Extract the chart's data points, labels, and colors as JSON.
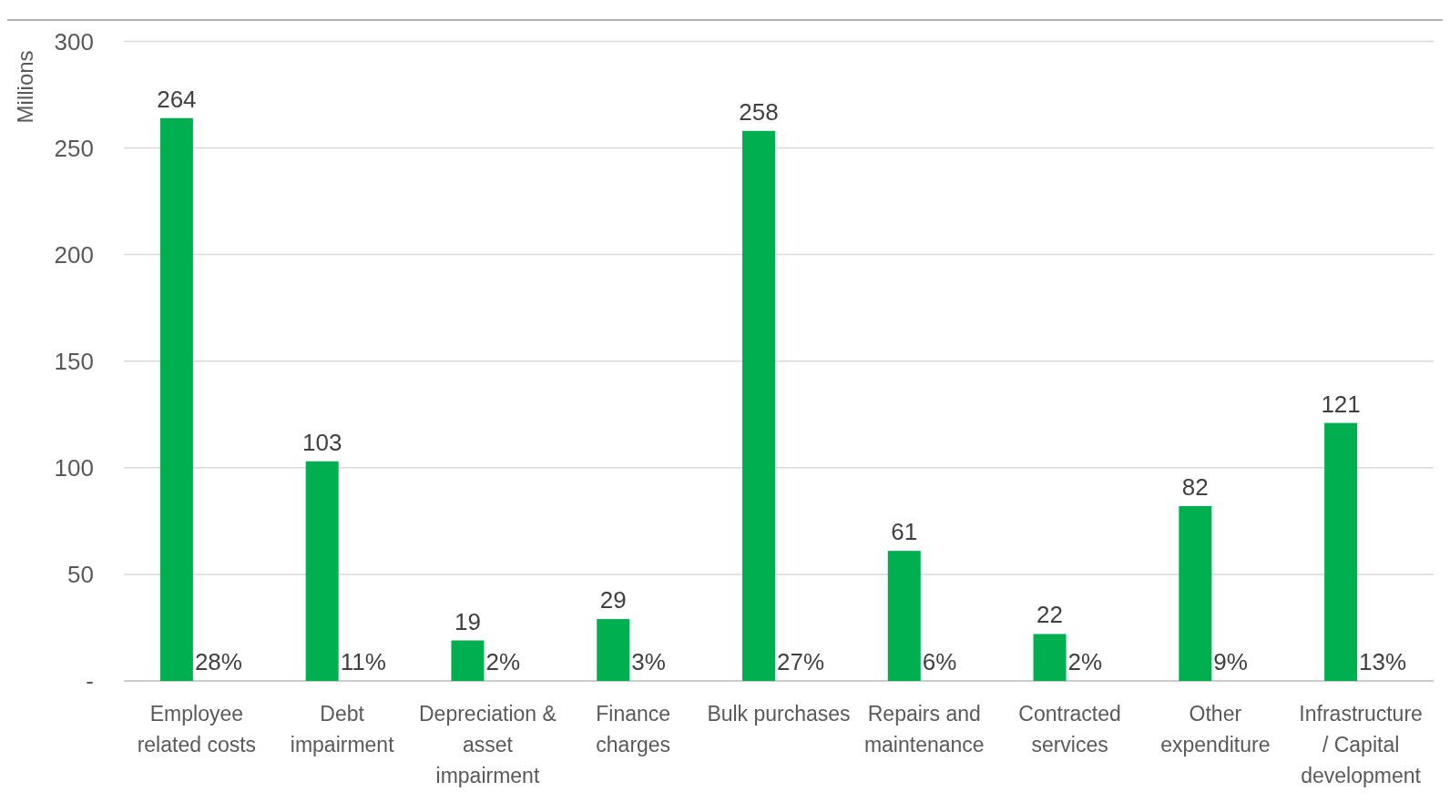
{
  "chart_data": {
    "type": "bar",
    "ylabel": "Millions",
    "categories": [
      "Employee related costs",
      "Debt impairment",
      "Depreciation & asset impairment",
      "Finance charges",
      "Bulk purchases",
      "Repairs and maintenance",
      "Contracted services",
      "Other expenditure",
      "Infrastructure / Capital development"
    ],
    "values": [
      264,
      103,
      19,
      29,
      258,
      61,
      22,
      82,
      121
    ],
    "color": "#00b050",
    "data_labels": true,
    "ylim": [
      0,
      310
    ],
    "yticks": [
      {
        "value": 0,
        "label": "-"
      },
      50,
      100,
      150,
      200,
      250,
      300
    ],
    "grid": "y",
    "annotations": [
      {
        "text": "28%",
        "x": "Employee related costs",
        "y": 0
      },
      {
        "text": "11%",
        "x": "Debt impairment",
        "y": 0
      },
      {
        "text": "2%",
        "x": "Depreciation & asset impairment",
        "y": 0
      },
      {
        "text": "3%",
        "x": "Finance charges",
        "y": 0
      },
      {
        "text": "27%",
        "x": "Bulk purchases",
        "y": 0
      },
      {
        "text": "6%",
        "x": "Repairs and maintenance",
        "y": 0
      },
      {
        "text": "2%",
        "x": "Contracted services",
        "y": 0
      },
      {
        "text": "9%",
        "x": "Other expenditure",
        "y": 0
      },
      {
        "text": "13%",
        "x": "Infrastructure / Capital development",
        "y": 0
      }
    ]
  }
}
